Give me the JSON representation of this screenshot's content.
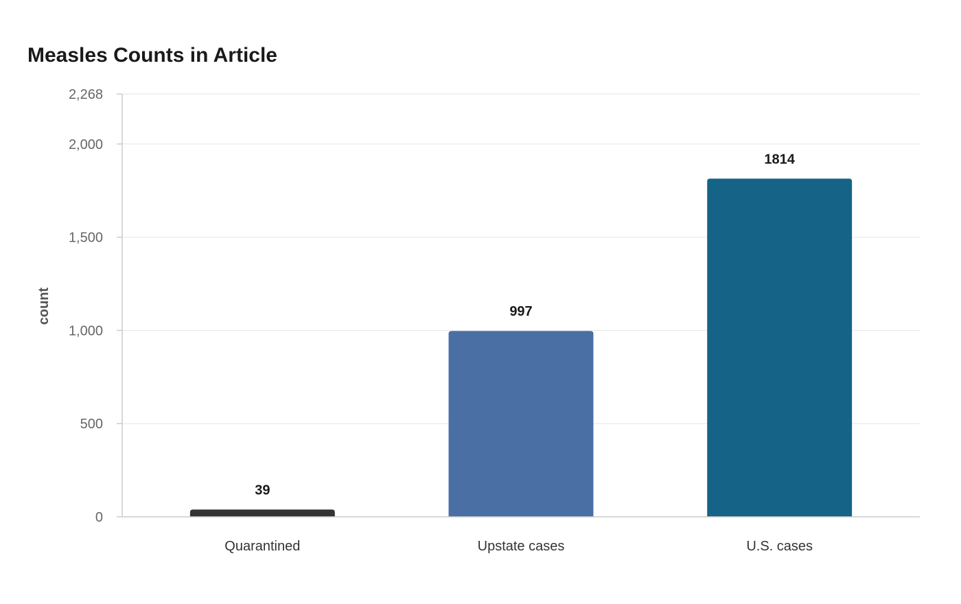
{
  "chart_data": {
    "type": "bar",
    "title": "Measles Counts in Article",
    "xlabel": "",
    "ylabel": "count",
    "categories": [
      "Quarantined",
      "Upstate cases",
      "U.S. cases"
    ],
    "values": [
      39,
      997,
      1814
    ],
    "data_labels": [
      "39",
      "997",
      "1814"
    ],
    "colors": [
      "#333333",
      "#4a6fa5",
      "#166388"
    ],
    "ylim": [
      0,
      2268
    ],
    "yticks": [
      0,
      500,
      1000,
      1500,
      2000,
      2268
    ],
    "ytick_labels": [
      "0",
      "500",
      "1,000",
      "1,500",
      "2,000",
      "2,268"
    ],
    "grid": true,
    "legend": "none"
  }
}
